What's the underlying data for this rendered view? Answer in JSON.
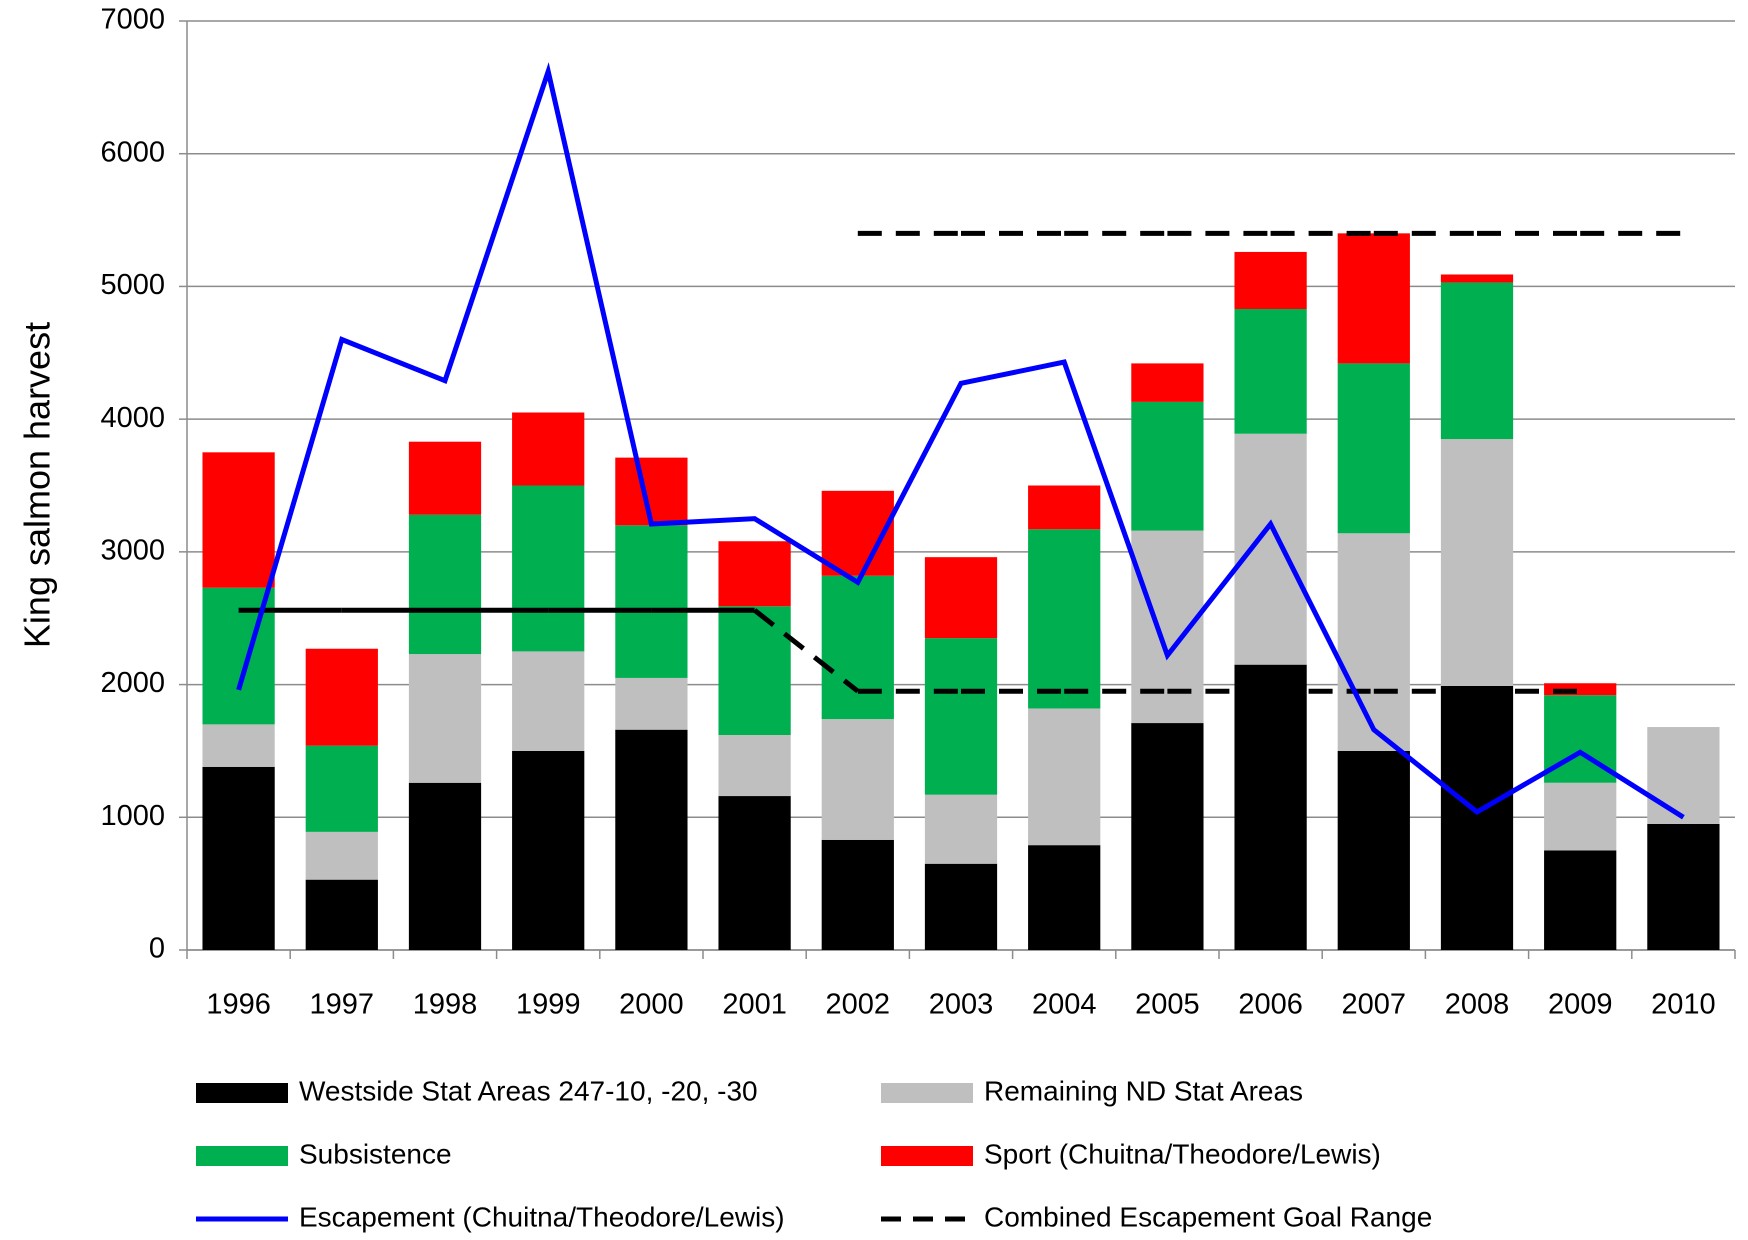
{
  "chart_data": {
    "type": "bar",
    "stacked": true,
    "y_label": "King salmon harvest",
    "categories": [
      "1996",
      "1997",
      "1998",
      "1999",
      "2000",
      "2001",
      "2002",
      "2003",
      "2004",
      "2005",
      "2006",
      "2007",
      "2008",
      "2009",
      "2010"
    ],
    "series": [
      {
        "name": "Westside Stat  Areas 247-10, -20, -30",
        "color": "#000000",
        "values": [
          1380,
          530,
          1260,
          1500,
          1660,
          1160,
          830,
          650,
          790,
          1710,
          2150,
          1500,
          1990,
          750,
          950
        ]
      },
      {
        "name": "Remaining ND Stat  Areas",
        "color": "#bfbfbf",
        "values": [
          320,
          360,
          970,
          750,
          390,
          460,
          910,
          520,
          1030,
          1450,
          1740,
          1640,
          1860,
          510,
          730
        ]
      },
      {
        "name": "Subsistence",
        "color": "#00b050",
        "values": [
          1030,
          650,
          1050,
          1250,
          1150,
          970,
          1080,
          1180,
          1350,
          970,
          940,
          1280,
          1180,
          660,
          0
        ]
      },
      {
        "name": "Sport (Chuitna/Theodore/Lewis)",
        "color": "#ff0000",
        "values": [
          1020,
          730,
          550,
          550,
          510,
          490,
          640,
          610,
          330,
          290,
          430,
          980,
          60,
          90,
          0
        ]
      },
      {
        "name": "Escapement (Chuitna/Theodore/Lewis)",
        "color": "#0000ff",
        "type": "line",
        "values": [
          1960,
          4600,
          4290,
          6620,
          3210,
          3250,
          2770,
          4270,
          4430,
          2220,
          3210,
          1660,
          1040,
          1490,
          1000
        ]
      }
    ],
    "goal_range": {
      "name": "Combined Escapement Goal Range",
      "color": "#000000",
      "lower": [
        2560,
        2560,
        2560,
        2560,
        2560,
        2560,
        1950,
        1950,
        1950,
        1950,
        1950,
        1950,
        1950,
        1950,
        null
      ],
      "upper": [
        null,
        null,
        null,
        null,
        null,
        null,
        5400,
        5400,
        5400,
        5400,
        5400,
        5400,
        5400,
        5400,
        5400
      ]
    },
    "ylim": [
      0,
      7000
    ],
    "yticks": [
      0,
      1000,
      2000,
      3000,
      4000,
      5000,
      6000,
      7000
    ],
    "grid": true
  }
}
